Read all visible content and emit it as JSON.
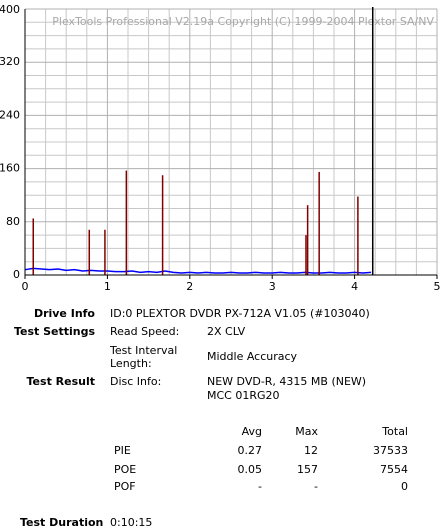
{
  "chart_data": {
    "type": "line",
    "watermark": "PlexTools Professional V2.19a Copyright (C) 1999-2004 Plextor SA/NV",
    "xlim": [
      0,
      5
    ],
    "xticks": [
      0,
      1,
      2,
      3,
      4,
      5
    ],
    "ylim": [
      0,
      400
    ],
    "yticks": [
      0,
      80,
      160,
      240,
      320,
      400
    ],
    "grid": true,
    "end_marker": {
      "x": 4.22,
      "color": "#000000"
    },
    "series": [
      {
        "style": "line",
        "color": "#0000ff",
        "x": [
          0,
          0.1,
          0.2,
          0.3,
          0.4,
          0.5,
          0.6,
          0.7,
          0.8,
          0.9,
          1.0,
          1.1,
          1.2,
          1.3,
          1.4,
          1.5,
          1.6,
          1.7,
          1.8,
          1.9,
          2.0,
          2.1,
          2.2,
          2.3,
          2.4,
          2.5,
          2.6,
          2.7,
          2.8,
          2.9,
          3.0,
          3.1,
          3.2,
          3.3,
          3.4,
          3.5,
          3.6,
          3.7,
          3.8,
          3.9,
          4.0,
          4.1,
          4.2
        ],
        "values": [
          8,
          10,
          9,
          8,
          9,
          7,
          8,
          6,
          7,
          6,
          6,
          5,
          5,
          6,
          4,
          5,
          4,
          6,
          4,
          3,
          4,
          3,
          4,
          3,
          3,
          4,
          3,
          3,
          4,
          3,
          3,
          4,
          3,
          3,
          4,
          3,
          3,
          4,
          3,
          3,
          4,
          3,
          4
        ]
      },
      {
        "style": "spike",
        "color": "#800000",
        "x": [
          0.1,
          0.78,
          0.97,
          1.23,
          1.67,
          3.41,
          3.43,
          3.57,
          4.04
        ],
        "values": [
          85,
          68,
          68,
          157,
          150,
          60,
          105,
          155,
          118
        ]
      }
    ]
  },
  "drive_info": {
    "label": "Drive Info",
    "value": "ID:0 PLEXTOR DVDR PX-712A V1.05 (#103040)"
  },
  "test_settings": {
    "label": "Test Settings",
    "items": [
      {
        "name_lines": [
          "Read Speed:"
        ],
        "value": "2X CLV"
      },
      {
        "name_lines": [
          "Test Interval",
          "Length:"
        ],
        "value": "Middle Accuracy"
      }
    ]
  },
  "test_result": {
    "label": "Test Result",
    "name": "Disc Info:",
    "value_lines": [
      "NEW DVD-R, 4315 MB (NEW)",
      "MCC 01RG20"
    ]
  },
  "stats": {
    "columns": [
      "Avg",
      "Max",
      "Total"
    ],
    "rows": [
      {
        "name": "PIE",
        "cells": [
          0.27,
          12,
          37533
        ]
      },
      {
        "name": "POE",
        "cells": [
          0.05,
          157,
          7554
        ]
      },
      {
        "name": "POF",
        "cells": [
          "-",
          "-",
          0
        ]
      }
    ]
  },
  "test_duration": {
    "label": "Test Duration",
    "value": "0:10:15"
  }
}
